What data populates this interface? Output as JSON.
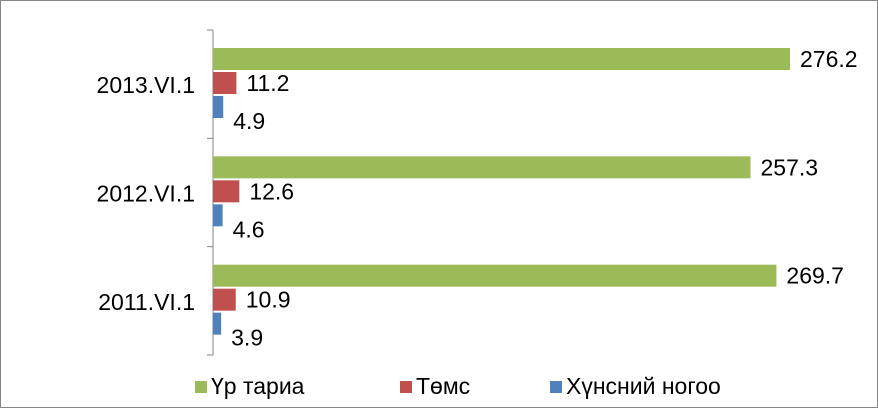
{
  "chart_data": {
    "type": "hbar",
    "categories": [
      "2013.VI.1",
      "2012.VI.1",
      "2011.VI.1"
    ],
    "series": [
      {
        "name": "Үр тариа",
        "color": "#9bbb59",
        "values": [
          276.2,
          257.3,
          269.7
        ]
      },
      {
        "name": "Төмс",
        "color": "#c0504d",
        "values": [
          11.2,
          12.6,
          10.9
        ]
      },
      {
        "name": "Хүнсний ногоо",
        "color": "#4f81bd",
        "values": [
          4.9,
          4.6,
          3.9
        ]
      }
    ],
    "legend": "bottom"
  }
}
